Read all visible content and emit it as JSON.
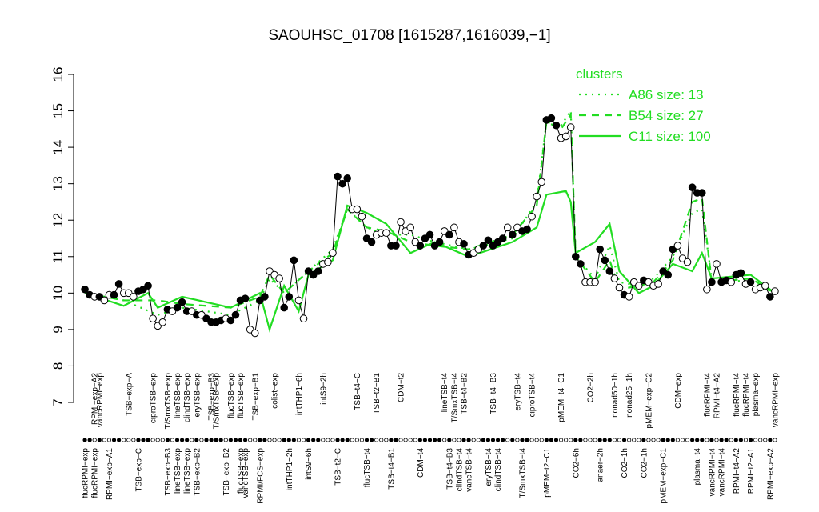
{
  "chart_data": {
    "type": "line",
    "title": "SAOUHSC_01708 [1615287,1616039,−1]",
    "ylim": [
      7,
      16
    ],
    "yticks": [
      7,
      8,
      9,
      10,
      11,
      12,
      13,
      14,
      15,
      16
    ],
    "xlim": [
      0,
      144
    ],
    "x": [
      1,
      2,
      3,
      4,
      5,
      6,
      7,
      8,
      9,
      10,
      11,
      12,
      13,
      14,
      15,
      16,
      17,
      18,
      19,
      20,
      21,
      22,
      23,
      24,
      25,
      26,
      27,
      28,
      29,
      30,
      31,
      32,
      33,
      34,
      35,
      36,
      37,
      38,
      39,
      40,
      41,
      42,
      43,
      44,
      45,
      46,
      47,
      48,
      49,
      50,
      51,
      52,
      53,
      54,
      55,
      56,
      57,
      58,
      59,
      60,
      61,
      62,
      63,
      64,
      65,
      66,
      67,
      68,
      69,
      70,
      71,
      72,
      73,
      74,
      75,
      76,
      77,
      78,
      79,
      80,
      81,
      82,
      83,
      84,
      85,
      86,
      87,
      88,
      89,
      90,
      91,
      92,
      93,
      94,
      95,
      96,
      97,
      98,
      99,
      100,
      101,
      102,
      103,
      104,
      105,
      106,
      107,
      108,
      109,
      110,
      111,
      112,
      113,
      114,
      115,
      116,
      117,
      118,
      119,
      120,
      121,
      122,
      123,
      124,
      125,
      126,
      127,
      128,
      129,
      130,
      131,
      132,
      133,
      134,
      135,
      136,
      137,
      138,
      139,
      140,
      141,
      142,
      143
    ],
    "values": [
      10.1,
      9.95,
      9.9,
      9.9,
      9.8,
      9.95,
      9.95,
      10.25,
      10.0,
      10.0,
      9.9,
      10.05,
      10.1,
      10.2,
      9.3,
      9.1,
      9.2,
      9.55,
      9.5,
      9.6,
      9.75,
      9.5,
      9.5,
      9.4,
      9.4,
      9.3,
      9.2,
      9.2,
      9.25,
      9.3,
      9.25,
      9.4,
      9.8,
      9.85,
      9.0,
      8.9,
      9.8,
      9.9,
      10.6,
      10.5,
      10.4,
      9.6,
      9.9,
      10.9,
      9.8,
      9.3,
      10.6,
      10.5,
      10.6,
      10.8,
      10.85,
      11.1,
      13.2,
      13.0,
      13.15,
      12.3,
      12.3,
      12.1,
      11.5,
      11.4,
      11.6,
      11.65,
      11.65,
      11.3,
      11.3,
      11.95,
      11.7,
      11.8,
      11.4,
      11.3,
      11.5,
      11.6,
      11.3,
      11.4,
      11.7,
      11.6,
      11.8,
      11.4,
      11.35,
      11.05,
      11.1,
      11.2,
      11.3,
      11.45,
      11.3,
      11.4,
      11.5,
      11.8,
      11.6,
      11.8,
      11.7,
      11.75,
      12.1,
      12.65,
      13.05,
      14.75,
      14.8,
      14.6,
      14.25,
      14.3,
      14.55,
      11.0,
      10.8,
      10.3,
      10.3,
      10.3,
      11.2,
      10.9,
      10.6,
      10.4,
      10.15,
      9.95,
      9.9,
      10.3,
      10.2,
      10.35,
      10.3,
      10.2,
      10.25,
      10.6,
      10.5,
      11.2,
      11.3,
      10.95,
      10.85,
      12.9,
      12.75,
      12.75,
      10.1,
      10.3,
      10.8,
      10.3,
      10.35,
      10.3,
      10.5,
      10.55,
      10.25,
      10.3,
      10.1,
      10.15,
      10.2,
      9.9,
      10.05
    ],
    "point_colors": [
      "#000",
      "#000",
      "#fff",
      "#000",
      "#fff",
      "#fff",
      "#000",
      "#000",
      "#fff",
      "#fff",
      "#fff",
      "#000",
      "#000",
      "#000",
      "#fff",
      "#fff",
      "#fff",
      "#000",
      "#fff",
      "#000",
      "#000",
      "#000",
      "#fff",
      "#000",
      "#fff",
      "#000",
      "#000",
      "#000",
      "#000",
      "#fff",
      "#000",
      "#000",
      "#000",
      "#000",
      "#fff",
      "#fff",
      "#000",
      "#000",
      "#fff",
      "#fff",
      "#fff",
      "#000",
      "#000",
      "#000",
      "#fff",
      "#fff",
      "#000",
      "#000",
      "#000",
      "#fff",
      "#fff",
      "#fff",
      "#000",
      "#000",
      "#000",
      "#fff",
      "#fff",
      "#fff",
      "#000",
      "#000",
      "#fff",
      "#fff",
      "#fff",
      "#000",
      "#000",
      "#fff",
      "#fff",
      "#fff",
      "#fff",
      "#000",
      "#000",
      "#000",
      "#000",
      "#000",
      "#fff",
      "#000",
      "#fff",
      "#fff",
      "#000",
      "#000",
      "#fff",
      "#fff",
      "#000",
      "#000",
      "#000",
      "#000",
      "#000",
      "#fff",
      "#000",
      "#fff",
      "#000",
      "#000",
      "#fff",
      "#fff",
      "#fff",
      "#000",
      "#000",
      "#000",
      "#fff",
      "#fff",
      "#fff",
      "#000",
      "#000",
      "#fff",
      "#fff",
      "#fff",
      "#000",
      "#000",
      "#000",
      "#fff",
      "#fff",
      "#000",
      "#fff",
      "#fff",
      "#fff",
      "#000",
      "#fff",
      "#fff",
      "#fff",
      "#000",
      "#000",
      "#000",
      "#fff",
      "#fff",
      "#fff",
      "#000",
      "#000",
      "#000",
      "#fff",
      "#000",
      "#fff",
      "#000",
      "#000",
      "#fff",
      "#000",
      "#000",
      "#fff",
      "#000",
      "#fff",
      "#fff",
      "#fff",
      "#000",
      "#fff"
    ],
    "xticks_top": [
      {
        "value": 3,
        "label": "RPMI−exp−A2"
      },
      {
        "value": 4,
        "label": "vancRPMI−exp"
      },
      {
        "value": 10,
        "label": "TSB−exp−A"
      },
      {
        "value": 15,
        "label": "ciproTSB−exp"
      },
      {
        "value": 18,
        "label": "T/SmxTSB−exp"
      },
      {
        "value": 20,
        "label": "lineTSB−exp"
      },
      {
        "value": 22,
        "label": "clindTSB−exp"
      },
      {
        "value": 24,
        "label": "eryTSB−exp"
      },
      {
        "value": 27,
        "label": "TSB−exp−B3"
      },
      {
        "value": 28,
        "label": "T/SmxTSB−exp"
      },
      {
        "value": 31,
        "label": "flucTSB−exp"
      },
      {
        "value": 33,
        "label": "flucTSB−exp"
      },
      {
        "value": 36,
        "label": "TSB−exp−B1"
      },
      {
        "value": 40,
        "label": "colist−exp"
      },
      {
        "value": 45,
        "label": "intTHP1−6h"
      },
      {
        "value": 50,
        "label": "intS9−2h"
      },
      {
        "value": 57,
        "label": "TSB−t4−C"
      },
      {
        "value": 61,
        "label": "TSB−t2−B1"
      },
      {
        "value": 66,
        "label": "CDM−t2"
      },
      {
        "value": 75,
        "label": "lineTSB−t4"
      },
      {
        "value": 77,
        "label": "T/SmxTSB−t4"
      },
      {
        "value": 79,
        "label": "TSB−t4−B2"
      },
      {
        "value": 85,
        "label": "TSB−t4−B3"
      },
      {
        "value": 90,
        "label": "eryTSB−t4"
      },
      {
        "value": 93,
        "label": "ciproTSB−t4"
      },
      {
        "value": 99,
        "label": "pMEM−t4−C1"
      },
      {
        "value": 105,
        "label": "CO2−2h"
      },
      {
        "value": 110,
        "label": "nonad50−1h"
      },
      {
        "value": 113,
        "label": "nonad25−1h"
      },
      {
        "value": 117,
        "label": "pMEM−exp−C2"
      },
      {
        "value": 123,
        "label": "CDM−exp"
      },
      {
        "value": 129,
        "label": "flucRPMI−t4"
      },
      {
        "value": 131,
        "label": "RPMI−t4−A2"
      },
      {
        "value": 135,
        "label": "flucRPMI−t4"
      },
      {
        "value": 137,
        "label": "flucRPMI−t4"
      },
      {
        "value": 139,
        "label": "plasma−exp"
      },
      {
        "value": 143,
        "label": "vancRPMI−exp"
      }
    ],
    "xticks_bottom": [
      {
        "value": 1,
        "label": "flucRPMI−exp"
      },
      {
        "value": 3,
        "label": "flucRPMI−exp"
      },
      {
        "value": 6,
        "label": "RPMI−exp−A1"
      },
      {
        "value": 12,
        "label": "TSB−exp−C"
      },
      {
        "value": 18,
        "label": "TSB−exp−B3"
      },
      {
        "value": 20,
        "label": "lineTSB−exp"
      },
      {
        "value": 22,
        "label": "lineTSB−exp"
      },
      {
        "value": 24,
        "label": "TSB−exp−B2"
      },
      {
        "value": 30,
        "label": "TSB−exp−B2"
      },
      {
        "value": 33,
        "label": "flucTSB−exp"
      },
      {
        "value": 34,
        "label": "vancTSB−exp"
      },
      {
        "value": 37,
        "label": "RPMI/FCS−exp"
      },
      {
        "value": 43,
        "label": "intTHP1−2h"
      },
      {
        "value": 47,
        "label": "intS9−6h"
      },
      {
        "value": 53,
        "label": "TSB−t2−C"
      },
      {
        "value": 59,
        "label": "flucTSB−t4"
      },
      {
        "value": 64,
        "label": "TSB−t4−B1"
      },
      {
        "value": 70,
        "label": "CDM−t4"
      },
      {
        "value": 76,
        "label": "TSB−t4−B3"
      },
      {
        "value": 78,
        "label": "clindTSB−t4"
      },
      {
        "value": 80,
        "label": "vancTSB−t4"
      },
      {
        "value": 84,
        "label": "eryTSB−t4"
      },
      {
        "value": 86,
        "label": "clindTSB−t4"
      },
      {
        "value": 91,
        "label": "T/SmxTSB−t4"
      },
      {
        "value": 96,
        "label": "pMEM−t2−C1"
      },
      {
        "value": 102,
        "label": "CO2−6h"
      },
      {
        "value": 107,
        "label": "anaer−2h"
      },
      {
        "value": 112,
        "label": "CO2−1h"
      },
      {
        "value": 116,
        "label": "CO2−1h"
      },
      {
        "value": 120,
        "label": "pMEM−exp−C1"
      },
      {
        "value": 127,
        "label": "plasma−t4"
      },
      {
        "value": 130,
        "label": "vancRPMI−t4"
      },
      {
        "value": 132,
        "label": "vancRPMI−t4"
      },
      {
        "value": 135,
        "label": "RPMI−t4−A2"
      },
      {
        "value": 138,
        "label": "RPMI−t2−A1"
      },
      {
        "value": 142,
        "label": "RPMI−exp−A2"
      }
    ],
    "legend_title": "clusters",
    "legend_color": "#22dd22",
    "legend_position": "top-right",
    "clusters": [
      {
        "name": "A86 size: 13",
        "color": "#22dd22",
        "dash": "dotted",
        "x": [
          1,
          9,
          16,
          21,
          31,
          37,
          39,
          42,
          47,
          52,
          55,
          59,
          63,
          68,
          73,
          80,
          89,
          94,
          96,
          99,
          101,
          102,
          106,
          109,
          111,
          115,
          118,
          122,
          126,
          128,
          130,
          138,
          143
        ],
        "values": [
          10.0,
          9.8,
          9.4,
          9.6,
          9.4,
          9.8,
          10.4,
          10.0,
          10.6,
          11.2,
          12.3,
          11.8,
          11.6,
          11.6,
          11.4,
          11.2,
          11.5,
          12.5,
          14.7,
          14.6,
          15.0,
          11.0,
          10.4,
          11.3,
          10.3,
          10.2,
          10.4,
          11.0,
          12.2,
          12.3,
          10.4,
          10.3,
          10.0
        ]
      },
      {
        "name": "B54 size: 27",
        "color": "#22dd22",
        "dash": "dashed",
        "x": [
          1,
          9,
          16,
          21,
          31,
          37,
          39,
          42,
          47,
          52,
          55,
          59,
          63,
          68,
          73,
          80,
          89,
          94,
          96,
          99,
          101,
          102,
          106,
          109,
          111,
          115,
          118,
          122,
          126,
          128,
          130,
          138,
          143
        ],
        "values": [
          10.0,
          9.8,
          9.8,
          9.7,
          9.6,
          9.9,
          10.5,
          10.0,
          10.6,
          11.1,
          12.3,
          11.8,
          11.7,
          11.4,
          11.3,
          11.2,
          11.6,
          12.4,
          14.7,
          14.5,
          14.9,
          11.0,
          10.3,
          10.9,
          10.1,
          10.2,
          10.3,
          10.9,
          12.5,
          12.6,
          10.3,
          10.4,
          10.0
        ]
      },
      {
        "name": "C11 size: 100",
        "color": "#22dd22",
        "dash": "solid",
        "x": [
          1,
          9,
          14,
          16,
          21,
          31,
          37,
          39,
          42,
          45,
          47,
          52,
          55,
          59,
          63,
          68,
          73,
          80,
          89,
          94,
          96,
          100,
          101,
          102,
          106,
          109,
          111,
          115,
          118,
          122,
          126,
          128,
          130,
          138,
          143
        ],
        "values": [
          10.0,
          9.65,
          10.0,
          9.6,
          9.9,
          9.6,
          10.0,
          9.0,
          10.2,
          9.5,
          10.5,
          10.9,
          12.4,
          12.2,
          11.9,
          11.1,
          11.4,
          11.0,
          11.4,
          11.8,
          12.7,
          12.8,
          12.5,
          11.1,
          11.4,
          11.9,
          10.6,
          10.0,
          10.2,
          10.8,
          10.6,
          11.1,
          10.4,
          10.5,
          10.0
        ]
      }
    ]
  }
}
